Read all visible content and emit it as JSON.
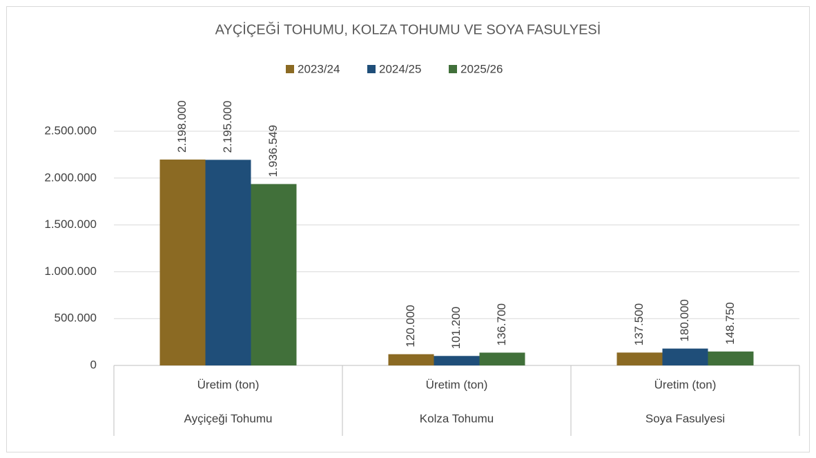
{
  "chart_data": {
    "type": "bar",
    "title": "AYÇİÇEĞİ TOHUMU, KOLZA TOHUMU VE SOYA FASULYESİ",
    "categories": [
      "Ayçiçeği Tohumu",
      "Kolza Tohumu",
      "Soya Fasulyesi"
    ],
    "subcategories": [
      "Üretim (ton)",
      "Üretim (ton)",
      "Üretim (ton)"
    ],
    "series": [
      {
        "name": "2023/24",
        "color": "#8b6a23",
        "values": [
          2198000,
          120000,
          137500
        ],
        "value_labels": [
          "2.198.000",
          "120.000",
          "137.500"
        ]
      },
      {
        "name": "2024/25",
        "color": "#1f4e79",
        "values": [
          2195000,
          101200,
          180000
        ],
        "value_labels": [
          "2.195.000",
          "101.200",
          "180.000"
        ]
      },
      {
        "name": "2025/26",
        "color": "#41703a",
        "values": [
          1936549,
          136700,
          148750
        ],
        "value_labels": [
          "1.936.549",
          "136.700",
          "148.750"
        ]
      }
    ],
    "ylim": [
      0,
      2500000
    ],
    "yticks": [
      0,
      {
        "value": 500000,
        "label": "500.000"
      },
      {
        "value": 1000000,
        "label": "1.000.000"
      },
      {
        "value": 1500000,
        "label": "1.500.000"
      },
      {
        "value": 2000000,
        "label": "2.000.000"
      },
      {
        "value": 2500000,
        "label": "2.500.000"
      }
    ],
    "grid": true,
    "legend": "top"
  }
}
